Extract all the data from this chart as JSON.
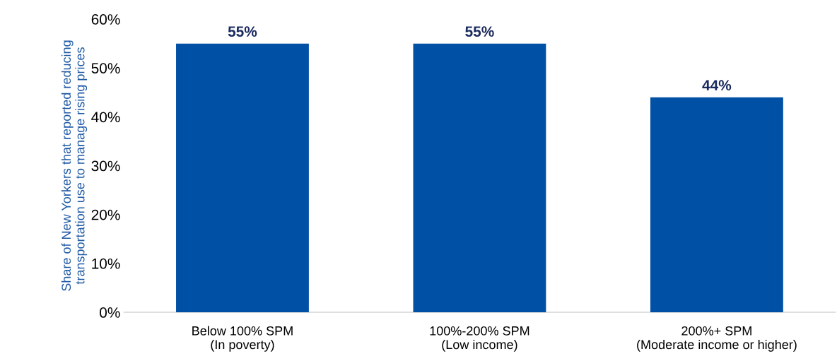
{
  "chart_data": {
    "type": "bar",
    "ylabel": "Share of New Yorkers that reported reducing\ntransportation use to manage rising prices",
    "categories": [
      "Below 100% SPM\n(In poverty)",
      "100%-200% SPM\n(Low income)",
      "200%+ SPM\n(Moderate income or higher)"
    ],
    "values": [
      55,
      55,
      44
    ],
    "value_labels": [
      "55%",
      "55%",
      "44%"
    ],
    "color": "#0050a5",
    "ylim": [
      0,
      60
    ],
    "yticks": [
      {
        "value": 0,
        "label": "0%"
      },
      {
        "value": 10,
        "label": "10%"
      },
      {
        "value": 20,
        "label": "20%"
      },
      {
        "value": 30,
        "label": "30%"
      },
      {
        "value": 40,
        "label": "40%"
      },
      {
        "value": 50,
        "label": "50%"
      },
      {
        "value": 60,
        "label": "60%"
      }
    ],
    "grid": false,
    "legend": false
  }
}
